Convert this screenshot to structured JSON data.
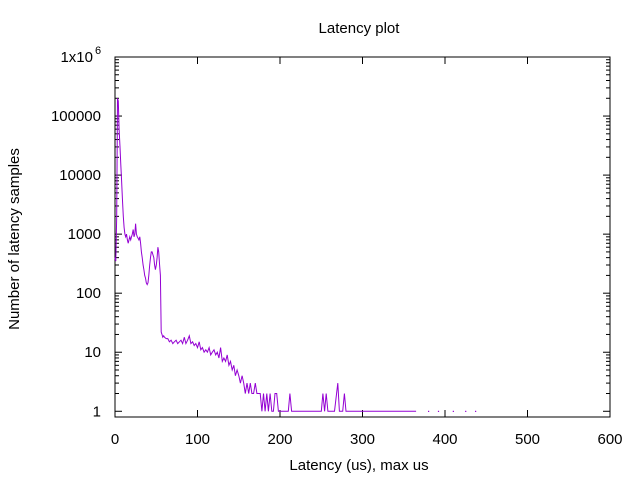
{
  "chart_data": {
    "type": "line",
    "title": "Latency plot",
    "xlabel": "Latency (us), max  us",
    "ylabel": "Number of latency samples",
    "xlim": [
      0,
      600
    ],
    "ylim": [
      0.8,
      1000000
    ],
    "y_scale": "log",
    "x_ticks": [
      {
        "value": 0,
        "label": "0"
      },
      {
        "value": 100,
        "label": "100"
      },
      {
        "value": 200,
        "label": "200"
      },
      {
        "value": 300,
        "label": "300"
      },
      {
        "value": 400,
        "label": "400"
      },
      {
        "value": 500,
        "label": "500"
      },
      {
        "value": 600,
        "label": "600"
      }
    ],
    "y_ticks": [
      {
        "value": 1,
        "label": "1"
      },
      {
        "value": 10,
        "label": "10"
      },
      {
        "value": 100,
        "label": "100"
      },
      {
        "value": 1000,
        "label": "1000"
      },
      {
        "value": 10000,
        "label": "10000"
      },
      {
        "value": 100000,
        "label": "100000"
      },
      {
        "value": 1000000,
        "label": "1x10",
        "superscript": "6"
      }
    ],
    "grid": false,
    "colors": {
      "series": "#9400d3",
      "axes": "#000000"
    },
    "series": [
      {
        "points": [
          [
            0,
            400
          ],
          [
            1,
            350
          ],
          [
            2,
            2000
          ],
          [
            3,
            200000
          ],
          [
            4,
            180000
          ],
          [
            5,
            60000
          ],
          [
            6,
            30000
          ],
          [
            7,
            15000
          ],
          [
            8,
            8000
          ],
          [
            9,
            4000
          ],
          [
            10,
            2000
          ],
          [
            11,
            1300
          ],
          [
            12,
            1000
          ],
          [
            13,
            900
          ],
          [
            14,
            1000
          ],
          [
            15,
            800
          ],
          [
            16,
            700
          ],
          [
            17,
            800
          ],
          [
            18,
            900
          ],
          [
            19,
            800
          ],
          [
            20,
            900
          ],
          [
            21,
            1000
          ],
          [
            22,
            1200
          ],
          [
            23,
            900
          ],
          [
            24,
            1000
          ],
          [
            25,
            1500
          ],
          [
            26,
            1000
          ],
          [
            27,
            900
          ],
          [
            28,
            850
          ],
          [
            29,
            800
          ],
          [
            30,
            900
          ],
          [
            31,
            700
          ],
          [
            32,
            500
          ],
          [
            33,
            400
          ],
          [
            34,
            300
          ],
          [
            35,
            250
          ],
          [
            36,
            200
          ],
          [
            37,
            180
          ],
          [
            38,
            150
          ],
          [
            39,
            140
          ],
          [
            40,
            150
          ],
          [
            41,
            200
          ],
          [
            42,
            300
          ],
          [
            43,
            400
          ],
          [
            44,
            500
          ],
          [
            45,
            500
          ],
          [
            46,
            450
          ],
          [
            47,
            400
          ],
          [
            48,
            300
          ],
          [
            49,
            250
          ],
          [
            50,
            300
          ],
          [
            51,
            400
          ],
          [
            52,
            600
          ],
          [
            53,
            500
          ],
          [
            54,
            300
          ],
          [
            55,
            200
          ],
          [
            56,
            22
          ],
          [
            57,
            20
          ],
          [
            58,
            18
          ],
          [
            59,
            19
          ],
          [
            60,
            18
          ],
          [
            62,
            17
          ],
          [
            64,
            17
          ],
          [
            66,
            15
          ],
          [
            68,
            16
          ],
          [
            70,
            14
          ],
          [
            72,
            15
          ],
          [
            74,
            16
          ],
          [
            76,
            14
          ],
          [
            78,
            15
          ],
          [
            80,
            16
          ],
          [
            82,
            14
          ],
          [
            84,
            18
          ],
          [
            86,
            14
          ],
          [
            88,
            16
          ],
          [
            90,
            19
          ],
          [
            92,
            14
          ],
          [
            94,
            15
          ],
          [
            96,
            13
          ],
          [
            98,
            14
          ],
          [
            100,
            12
          ],
          [
            102,
            15
          ],
          [
            104,
            11
          ],
          [
            106,
            12
          ],
          [
            108,
            10
          ],
          [
            110,
            11
          ],
          [
            112,
            10
          ],
          [
            114,
            12
          ],
          [
            116,
            9
          ],
          [
            118,
            10
          ],
          [
            120,
            11
          ],
          [
            122,
            9
          ],
          [
            124,
            10
          ],
          [
            126,
            8
          ],
          [
            128,
            12
          ],
          [
            130,
            7
          ],
          [
            132,
            8
          ],
          [
            134,
            7
          ],
          [
            136,
            9
          ],
          [
            138,
            6
          ],
          [
            140,
            7
          ],
          [
            142,
            5
          ],
          [
            144,
            6
          ],
          [
            146,
            4
          ],
          [
            148,
            5
          ],
          [
            150,
            4
          ],
          [
            152,
            3
          ],
          [
            154,
            4
          ],
          [
            156,
            3
          ],
          [
            158,
            2
          ],
          [
            160,
            3
          ],
          [
            162,
            2
          ],
          [
            164,
            3
          ],
          [
            166,
            2
          ],
          [
            168,
            2
          ],
          [
            170,
            3
          ],
          [
            172,
            2
          ],
          [
            174,
            2
          ],
          [
            176,
            2
          ],
          [
            178,
            1
          ],
          [
            180,
            2
          ],
          [
            182,
            1
          ],
          [
            184,
            2
          ],
          [
            186,
            1
          ],
          [
            188,
            2
          ],
          [
            190,
            1
          ],
          [
            192,
            1
          ],
          [
            194,
            2
          ],
          [
            196,
            2
          ],
          [
            198,
            1
          ],
          [
            200,
            1
          ],
          [
            202,
            1
          ],
          [
            205,
            1
          ],
          [
            208,
            1
          ],
          [
            210,
            1
          ],
          [
            212,
            2
          ],
          [
            214,
            1
          ],
          [
            218,
            1
          ],
          [
            222,
            1
          ],
          [
            226,
            1
          ],
          [
            230,
            1
          ],
          [
            234,
            1
          ],
          [
            238,
            1
          ],
          [
            242,
            1
          ],
          [
            246,
            1
          ],
          [
            250,
            1
          ],
          [
            252,
            2
          ],
          [
            254,
            1
          ],
          [
            256,
            2
          ],
          [
            258,
            1
          ],
          [
            262,
            1
          ],
          [
            266,
            1
          ],
          [
            270,
            3
          ],
          [
            272,
            1
          ],
          [
            274,
            1
          ],
          [
            276,
            1
          ],
          [
            278,
            2
          ],
          [
            280,
            1
          ],
          [
            284,
            1
          ],
          [
            290,
            1
          ],
          [
            296,
            1
          ],
          [
            302,
            1
          ],
          [
            308,
            1
          ],
          [
            314,
            1
          ],
          [
            320,
            1
          ],
          [
            326,
            1
          ],
          [
            332,
            1
          ],
          [
            338,
            1
          ],
          [
            344,
            1
          ],
          [
            350,
            1
          ],
          [
            355,
            1
          ],
          [
            360,
            1
          ],
          [
            365,
            1
          ]
        ]
      }
    ],
    "isolated_points": [
      [
        380,
        1
      ],
      [
        392,
        1
      ],
      [
        410,
        1
      ],
      [
        425,
        1
      ],
      [
        437,
        1
      ]
    ]
  }
}
